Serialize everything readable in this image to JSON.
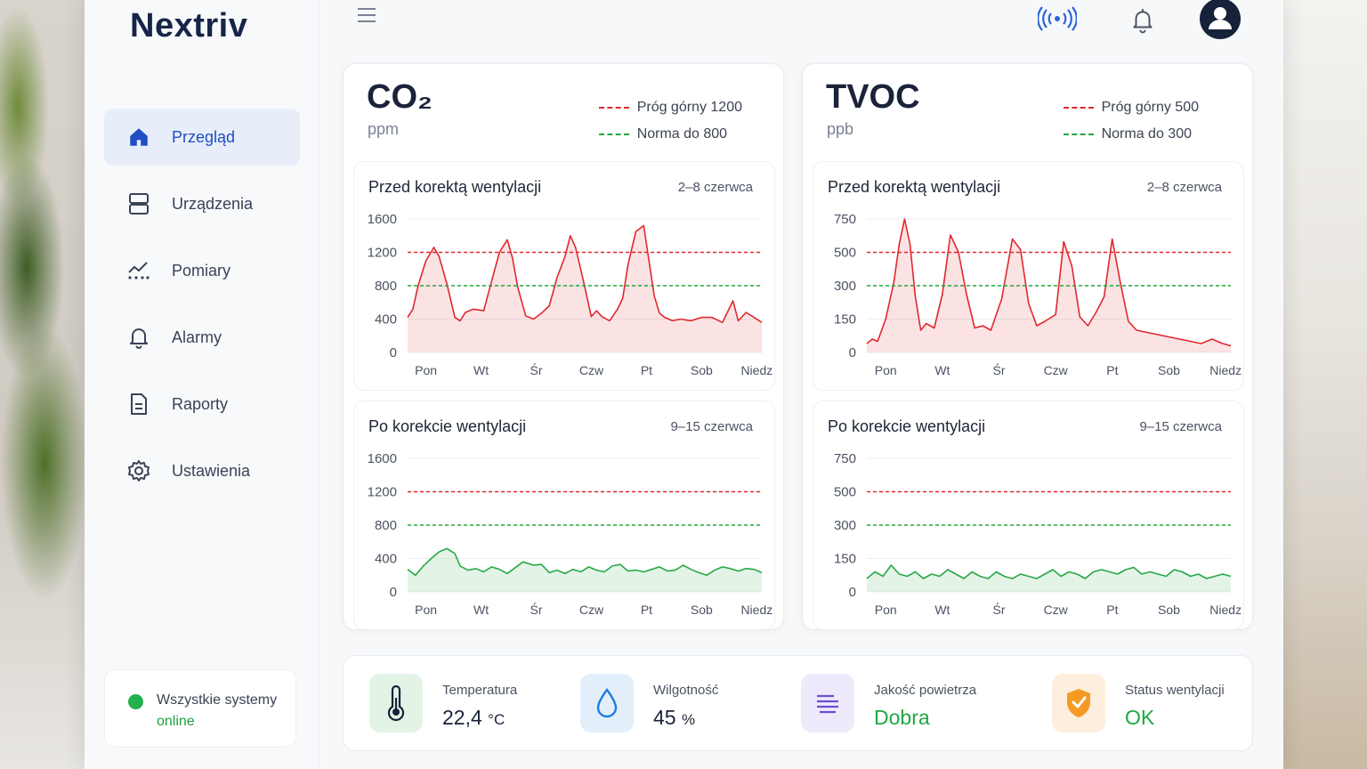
{
  "app": {
    "logo": "Nextriv"
  },
  "sidebar": {
    "items": [
      {
        "label": "Przegląd",
        "icon": "home-icon",
        "active": true
      },
      {
        "label": "Urządzenia",
        "icon": "devices-icon"
      },
      {
        "label": "Pomiary",
        "icon": "measurements-icon"
      },
      {
        "label": "Alarmy",
        "icon": "bell-icon"
      },
      {
        "label": "Raporty",
        "icon": "report-icon"
      },
      {
        "label": "Ustawienia",
        "icon": "gear-icon"
      }
    ],
    "status": {
      "line1": "Wszystkie systemy",
      "line2": "online"
    }
  },
  "topbar": {
    "icons": [
      "menu-icon",
      "signal-icon",
      "notification-bell-icon",
      "user-avatar-icon"
    ]
  },
  "panels": [
    {
      "title": "CO₂",
      "unit": "ppm",
      "legend": [
        {
          "label": "Próg górny 1200",
          "color": "#e0282e"
        },
        {
          "label": "Norma do 800",
          "color": "#22a83a"
        }
      ],
      "charts": [
        {
          "title": "Przed korektą wentylacji",
          "range": "2–8 czerwca"
        },
        {
          "title": "Po korekcie wentylacji",
          "range": "9–15 czerwca"
        }
      ]
    },
    {
      "title": "TVOC",
      "unit": "ppb",
      "legend": [
        {
          "label": "Próg górny 500",
          "color": "#e0282e"
        },
        {
          "label": "Norma do 300",
          "color": "#22a83a"
        }
      ],
      "charts": [
        {
          "title": "Przed korektą wentylacji",
          "range": "2–8 czerwca"
        },
        {
          "title": "Po korekcie wentylacji",
          "range": "9–15 czerwca"
        }
      ]
    }
  ],
  "stats": [
    {
      "label": "Temperatura",
      "value": "22,4",
      "unit": "°C",
      "icon": "thermometer-icon"
    },
    {
      "label": "Wilgotność",
      "value": "45",
      "unit": "%",
      "icon": "water-drop-icon"
    },
    {
      "label": "Jakość powietrza",
      "value": "Dobra",
      "icon": "air-quality-icon"
    },
    {
      "label": "Status wentylacji",
      "value": "OK",
      "icon": "shield-check-icon"
    }
  ],
  "chart_data": [
    {
      "type": "area",
      "title": "Przed korektą wentylacji",
      "subtitle": "2–8 czerwca",
      "panel": "CO₂",
      "unit": "ppm",
      "categories": [
        "Pon",
        "Wt",
        "Śr",
        "Czw",
        "Pt",
        "Sob",
        "Niedz"
      ],
      "yticks": [
        0,
        400,
        800,
        1200,
        1600
      ],
      "ylim": [
        0,
        1600
      ],
      "thresholds": [
        {
          "value": 1200,
          "color": "#e0282e"
        },
        {
          "value": 800,
          "color": "#22a83a"
        }
      ],
      "series": [
        {
          "color": "#e0282e",
          "x": [
            0,
            0.1,
            0.2,
            0.35,
            0.5,
            0.6,
            0.75,
            0.9,
            1.0,
            1.1,
            1.25,
            1.45,
            1.6,
            1.75,
            1.9,
            2.0,
            2.1,
            2.25,
            2.4,
            2.55,
            2.7,
            2.85,
            3.0,
            3.1,
            3.2,
            3.35,
            3.5,
            3.6,
            3.7,
            3.85,
            4.0,
            4.1,
            4.2,
            4.35,
            4.5,
            4.6,
            4.7,
            4.8,
            4.9,
            5.05,
            5.2,
            5.4,
            5.6,
            5.8,
            6.0,
            6.2,
            6.3,
            6.45,
            6.6,
            6.75
          ],
          "values": [
            420,
            520,
            800,
            1100,
            1260,
            1150,
            820,
            420,
            380,
            480,
            520,
            500,
            850,
            1200,
            1350,
            1130,
            780,
            440,
            400,
            470,
            560,
            900,
            1150,
            1400,
            1260,
            860,
            430,
            500,
            430,
            380,
            520,
            650,
            1050,
            1450,
            1520,
            1100,
            680,
            470,
            420,
            380,
            400,
            380,
            420,
            420,
            360,
            620,
            380,
            480,
            420,
            360
          ]
        }
      ]
    },
    {
      "type": "area",
      "title": "Po korekcie wentylacji",
      "subtitle": "9–15 czerwca",
      "panel": "CO₂",
      "unit": "ppm",
      "categories": [
        "Pon",
        "Wt",
        "Śr",
        "Czw",
        "Pt",
        "Sob",
        "Niedz"
      ],
      "yticks": [
        0,
        400,
        800,
        1200,
        1600
      ],
      "ylim": [
        0,
        1600
      ],
      "thresholds": [
        {
          "value": 1200,
          "color": "#e0282e"
        },
        {
          "value": 800,
          "color": "#22a83a"
        }
      ],
      "series": [
        {
          "color": "#28a845",
          "x": [
            0,
            0.15,
            0.3,
            0.45,
            0.6,
            0.75,
            0.9,
            1.0,
            1.15,
            1.3,
            1.45,
            1.6,
            1.75,
            1.9,
            2.05,
            2.2,
            2.4,
            2.55,
            2.7,
            2.85,
            3.0,
            3.15,
            3.3,
            3.45,
            3.6,
            3.75,
            3.9,
            4.05,
            4.2,
            4.35,
            4.5,
            4.65,
            4.8,
            4.95,
            5.1,
            5.25,
            5.4,
            5.55,
            5.7,
            5.85,
            6.0,
            6.15,
            6.3,
            6.45,
            6.6,
            6.75
          ],
          "values": [
            270,
            200,
            310,
            400,
            480,
            520,
            460,
            310,
            260,
            280,
            240,
            300,
            270,
            220,
            290,
            360,
            320,
            330,
            230,
            260,
            220,
            270,
            240,
            300,
            260,
            240,
            310,
            330,
            250,
            260,
            240,
            270,
            300,
            250,
            260,
            320,
            270,
            230,
            200,
            260,
            300,
            280,
            250,
            280,
            270,
            230
          ]
        }
      ]
    },
    {
      "type": "area",
      "title": "Przed korektą wentylacji",
      "subtitle": "2–8 czerwca",
      "panel": "TVOC",
      "unit": "ppb",
      "categories": [
        "Pon",
        "Wt",
        "Śr",
        "Czw",
        "Pt",
        "Sob",
        "Niedz"
      ],
      "yticks": [
        0,
        150,
        300,
        500,
        750
      ],
      "ylim": [
        0,
        750
      ],
      "thresholds": [
        {
          "value": 500,
          "color": "#e0282e"
        },
        {
          "value": 300,
          "color": "#22a83a"
        }
      ],
      "series": [
        {
          "color": "#e0282e",
          "x": [
            0,
            0.1,
            0.2,
            0.35,
            0.5,
            0.6,
            0.7,
            0.8,
            0.9,
            1.0,
            1.1,
            1.25,
            1.4,
            1.55,
            1.7,
            1.85,
            2.0,
            2.15,
            2.3,
            2.5,
            2.7,
            2.85,
            3.0,
            3.15,
            3.3,
            3.5,
            3.65,
            3.8,
            3.95,
            4.1,
            4.25,
            4.4,
            4.55,
            4.7,
            4.85,
            5.0,
            5.2,
            5.4,
            5.6,
            5.8,
            6.0,
            6.2,
            6.4,
            6.6,
            6.75
          ],
          "values": [
            40,
            60,
            50,
            150,
            320,
            560,
            750,
            560,
            250,
            100,
            130,
            110,
            260,
            630,
            500,
            260,
            110,
            120,
            100,
            240,
            600,
            520,
            220,
            120,
            140,
            170,
            580,
            420,
            160,
            120,
            180,
            250,
            600,
            320,
            140,
            100,
            90,
            80,
            70,
            60,
            50,
            40,
            60,
            40,
            30
          ]
        }
      ]
    },
    {
      "type": "area",
      "title": "Po korekcie wentylacji",
      "subtitle": "9–15 czerwca",
      "panel": "TVOC",
      "unit": "ppb",
      "categories": [
        "Pon",
        "Wt",
        "Śr",
        "Czw",
        "Pt",
        "Sob",
        "Niedz"
      ],
      "yticks": [
        0,
        150,
        300,
        500,
        750
      ],
      "ylim": [
        0,
        750
      ],
      "thresholds": [
        {
          "value": 500,
          "color": "#e0282e"
        },
        {
          "value": 300,
          "color": "#22a83a"
        }
      ],
      "series": [
        {
          "color": "#28a845",
          "x": [
            0,
            0.15,
            0.3,
            0.45,
            0.6,
            0.75,
            0.9,
            1.05,
            1.2,
            1.35,
            1.5,
            1.65,
            1.8,
            1.95,
            2.1,
            2.25,
            2.4,
            2.55,
            2.7,
            2.85,
            3.0,
            3.15,
            3.3,
            3.45,
            3.6,
            3.75,
            3.9,
            4.05,
            4.2,
            4.35,
            4.5,
            4.65,
            4.8,
            4.95,
            5.1,
            5.25,
            5.4,
            5.55,
            5.7,
            5.85,
            6.0,
            6.15,
            6.3,
            6.45,
            6.6,
            6.75
          ],
          "values": [
            60,
            90,
            70,
            120,
            80,
            70,
            90,
            60,
            80,
            70,
            100,
            80,
            60,
            90,
            70,
            60,
            90,
            70,
            60,
            80,
            70,
            60,
            80,
            100,
            70,
            90,
            80,
            60,
            90,
            100,
            90,
            80,
            100,
            110,
            80,
            90,
            80,
            70,
            100,
            90,
            70,
            80,
            60,
            70,
            80,
            70
          ]
        }
      ]
    }
  ]
}
